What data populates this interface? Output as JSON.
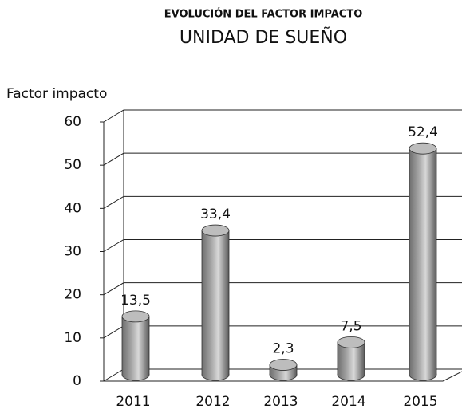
{
  "chart_data": {
    "type": "bar",
    "title": "EVOLUCIÓN DEL FACTOR IMPACTO",
    "subtitle": "UNIDAD DE SUEÑO",
    "y_label": "Factor impacto",
    "categories": [
      "2011",
      "2012",
      "2013",
      "2014",
      "2015"
    ],
    "values": [
      13.5,
      33.4,
      2.3,
      7.5,
      52.4
    ],
    "value_labels": [
      "13,5",
      "33,4",
      "2,3",
      "7,5",
      "52,4"
    ],
    "color": "#a6a6a6",
    "ylim": [
      0,
      60
    ],
    "yticks": [
      0,
      10,
      20,
      30,
      40,
      50,
      60
    ],
    "grid": true
  }
}
